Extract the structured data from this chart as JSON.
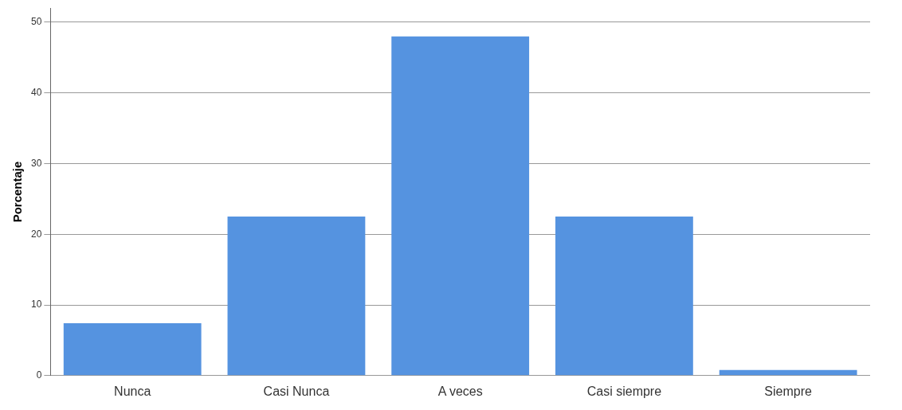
{
  "chart_data": {
    "type": "bar",
    "ylabel": "Porcentaje",
    "categories": [
      "Nunca",
      "Casi Nunca",
      "A veces",
      "Casi siempre",
      "Siempre"
    ],
    "values": [
      7.4,
      22.5,
      48.0,
      22.5,
      0.8
    ],
    "color": "#5593e0",
    "ylim": [
      0,
      52
    ],
    "yticks": [
      0,
      10,
      20,
      30,
      40,
      50
    ],
    "grid": "y",
    "legend": false
  }
}
